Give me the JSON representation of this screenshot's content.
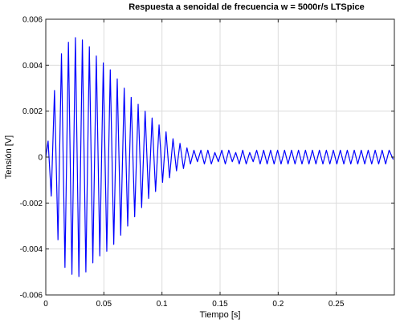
{
  "chart_data": {
    "type": "line",
    "title": "Respuesta a senoidal de frecuencia w = 5000r/s LTSpice",
    "xlabel": "Tiempo [s]",
    "ylabel": "Tensión [V]",
    "xlim": [
      0,
      0.3
    ],
    "ylim": [
      -0.006,
      0.006
    ],
    "grid": true,
    "x_ticks": [
      0,
      0.05,
      0.1,
      0.15,
      0.2,
      0.25
    ],
    "x_tick_labels": [
      "0",
      "0.05",
      "0.1",
      "0.15",
      "0.2",
      "0.25"
    ],
    "y_ticks": [
      -0.006,
      -0.004,
      -0.002,
      0,
      0.002,
      0.004,
      0.006
    ],
    "y_tick_labels": [
      "-0.006",
      "-0.004",
      "-0.002",
      "0",
      "0.002",
      "0.004",
      "0.006"
    ],
    "series": [
      {
        "color": "#0000ff",
        "x": [
          0,
          0.002,
          0.0047,
          0.0075,
          0.0105,
          0.0135,
          0.0165,
          0.0195,
          0.0225,
          0.0255,
          0.0285,
          0.0315,
          0.0345,
          0.0375,
          0.0405,
          0.0435,
          0.0465,
          0.0495,
          0.0525,
          0.0555,
          0.0585,
          0.0615,
          0.0645,
          0.0675,
          0.0705,
          0.0735,
          0.0765,
          0.0795,
          0.0825,
          0.0855,
          0.0885,
          0.0915,
          0.0945,
          0.0975,
          0.1005,
          0.1035,
          0.1065,
          0.1095,
          0.1125,
          0.1155,
          0.1185,
          0.1215,
          0.1245,
          0.1275,
          0.1305,
          0.1335,
          0.1365,
          0.1395,
          0.1425,
          0.1455,
          0.1485,
          0.1515,
          0.1545,
          0.1575,
          0.1605,
          0.1635,
          0.1665,
          0.1695,
          0.1725,
          0.1755,
          0.1785,
          0.1815,
          0.1845,
          0.1875,
          0.1905,
          0.1935,
          0.1965,
          0.1995,
          0.2025,
          0.2055,
          0.2085,
          0.2115,
          0.2145,
          0.2175,
          0.2205,
          0.2235,
          0.2265,
          0.2295,
          0.2325,
          0.2355,
          0.2385,
          0.2415,
          0.2445,
          0.2475,
          0.2505,
          0.2535,
          0.2565,
          0.2595,
          0.2625,
          0.2655,
          0.2685,
          0.2715,
          0.2745,
          0.2775,
          0.2805,
          0.2835,
          0.2865,
          0.2895,
          0.2925,
          0.2955,
          0.299
        ],
        "y": [
          0,
          0.0007,
          -0.0017,
          0.0029,
          -0.0036,
          0.0045,
          -0.0048,
          0.005,
          -0.0051,
          0.0052,
          -0.0052,
          0.0051,
          -0.005,
          0.0048,
          -0.0046,
          0.0044,
          -0.0043,
          0.0041,
          -0.0041,
          0.0038,
          -0.0038,
          0.0034,
          -0.0034,
          0.003,
          -0.003,
          0.0026,
          -0.0026,
          0.0023,
          -0.0022,
          0.002,
          -0.0018,
          0.0017,
          -0.0015,
          0.0014,
          -0.0011,
          0.0011,
          -0.0009,
          0.0008,
          -0.0006,
          0.0006,
          -0.0005,
          0.0004,
          -0.0003,
          0.0003,
          -0.0002,
          0.0003,
          -0.0003,
          0.0003,
          -0.0003,
          0.0002,
          -0.0002,
          0.0003,
          -0.0003,
          0.0003,
          -0.0002,
          0.0002,
          -0.0003,
          0.0003,
          -0.0003,
          0.0002,
          -0.0002,
          0.0003,
          -0.0003,
          0.0003,
          -0.0003,
          0.0003,
          -0.0003,
          0.0003,
          -0.0003,
          0.0003,
          -0.0003,
          0.0003,
          -0.0003,
          0.0003,
          -0.0003,
          0.0003,
          -0.0003,
          0.0003,
          -0.0003,
          0.0003,
          -0.0003,
          0.0003,
          -0.0003,
          0.0003,
          -0.0003,
          0.0003,
          -0.0003,
          0.0003,
          -0.0003,
          0.0003,
          -0.0003,
          0.0003,
          -0.0003,
          0.0003,
          -0.0003,
          0.0003,
          -0.0003,
          0.0003,
          -0.0003,
          0.0003,
          -0.0001
        ]
      }
    ]
  }
}
